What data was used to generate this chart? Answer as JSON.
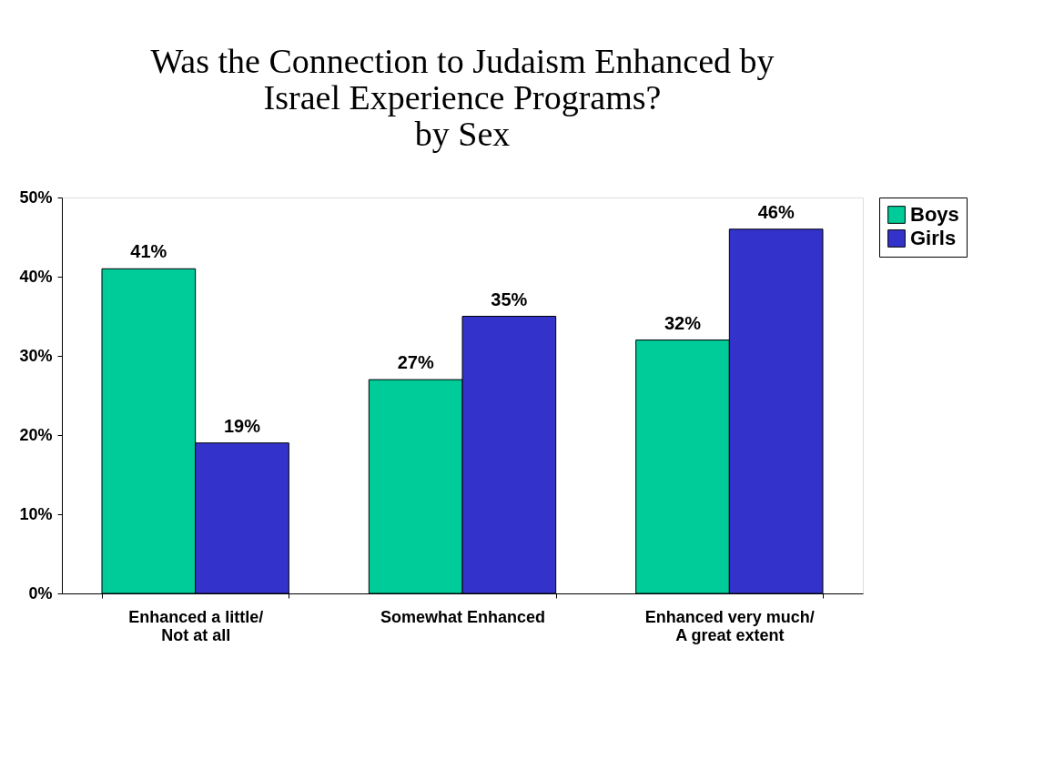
{
  "chart_data": {
    "type": "bar",
    "title": "Was the Connection to Judaism Enhanced by\nIsrael Experience Programs?\nby Sex",
    "categories": [
      "Enhanced a little/\nNot at all",
      "Somewhat Enhanced",
      "Enhanced very much/\nA great extent"
    ],
    "series": [
      {
        "name": "Boys",
        "color": "#00cc99",
        "values": [
          41,
          27,
          32
        ],
        "value_labels": [
          "41%",
          "27%",
          "32%"
        ]
      },
      {
        "name": "Girls",
        "color": "#3333cc",
        "values": [
          19,
          35,
          46
        ],
        "value_labels": [
          "19%",
          "35%",
          "46%"
        ]
      }
    ],
    "ylim": [
      0,
      50
    ],
    "yticks": [
      {
        "value": 0,
        "label": "0%"
      },
      {
        "value": 10,
        "label": "10%"
      },
      {
        "value": 20,
        "label": "20%"
      },
      {
        "value": 30,
        "label": "30%"
      },
      {
        "value": 40,
        "label": "40%"
      },
      {
        "value": 50,
        "label": "50%"
      }
    ],
    "grid": false,
    "legend": "right"
  }
}
